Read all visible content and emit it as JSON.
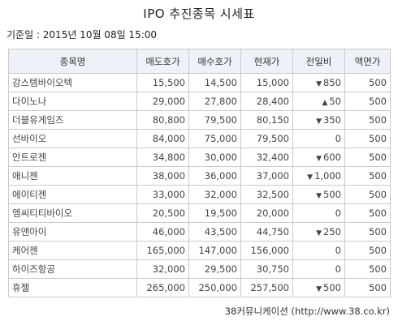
{
  "title": "IPO 추진종목 시세표",
  "base_date": "기준일 : 2015년 10월 08일 15:00",
  "columns": [
    "종목명",
    "매도호가",
    "매수호가",
    "현재가",
    "전일비",
    "액면가"
  ],
  "rows": [
    {
      "name": "강스템바이오텍",
      "ask": "15,500",
      "bid": "14,500",
      "price": "15,000",
      "dir": "down",
      "change": "850",
      "par": "500"
    },
    {
      "name": "다이노나",
      "ask": "29,000",
      "bid": "27,800",
      "price": "28,400",
      "dir": "up",
      "change": "50",
      "par": "500"
    },
    {
      "name": "더블유게임즈",
      "ask": "80,800",
      "bid": "79,500",
      "price": "80,150",
      "dir": "down",
      "change": "350",
      "par": "500"
    },
    {
      "name": "선바이오",
      "ask": "84,000",
      "bid": "75,000",
      "price": "79,500",
      "dir": "flat",
      "change": "0",
      "par": "500"
    },
    {
      "name": "안트로젠",
      "ask": "34,800",
      "bid": "30,000",
      "price": "32,400",
      "dir": "down",
      "change": "600",
      "par": "500"
    },
    {
      "name": "애니젠",
      "ask": "38,000",
      "bid": "36,000",
      "price": "37,000",
      "dir": "down",
      "change": "1,000",
      "par": "500"
    },
    {
      "name": "에이티젠",
      "ask": "33,000",
      "bid": "32,000",
      "price": "32,500",
      "dir": "down",
      "change": "500",
      "par": "500"
    },
    {
      "name": "엠씨티티바이오",
      "ask": "20,500",
      "bid": "19,500",
      "price": "20,000",
      "dir": "flat",
      "change": "0",
      "par": "500"
    },
    {
      "name": "유앤아이",
      "ask": "46,000",
      "bid": "43,500",
      "price": "44,750",
      "dir": "down",
      "change": "250",
      "par": "500"
    },
    {
      "name": "케어젠",
      "ask": "165,000",
      "bid": "147,000",
      "price": "156,000",
      "dir": "flat",
      "change": "0",
      "par": "500"
    },
    {
      "name": "하이즈항공",
      "ask": "32,000",
      "bid": "29,500",
      "price": "30,750",
      "dir": "flat",
      "change": "0",
      "par": "500"
    },
    {
      "name": "휴젤",
      "ask": "265,000",
      "bid": "250,000",
      "price": "257,500",
      "dir": "down",
      "change": "500",
      "par": "500"
    }
  ],
  "colors": {
    "down": "#1b5fb0",
    "up": "#b0177a",
    "header_bg": "#eef1f7",
    "border": "#c9c9c9"
  },
  "source": "38커뮤니케이션 (http://www.38.co.kr)"
}
